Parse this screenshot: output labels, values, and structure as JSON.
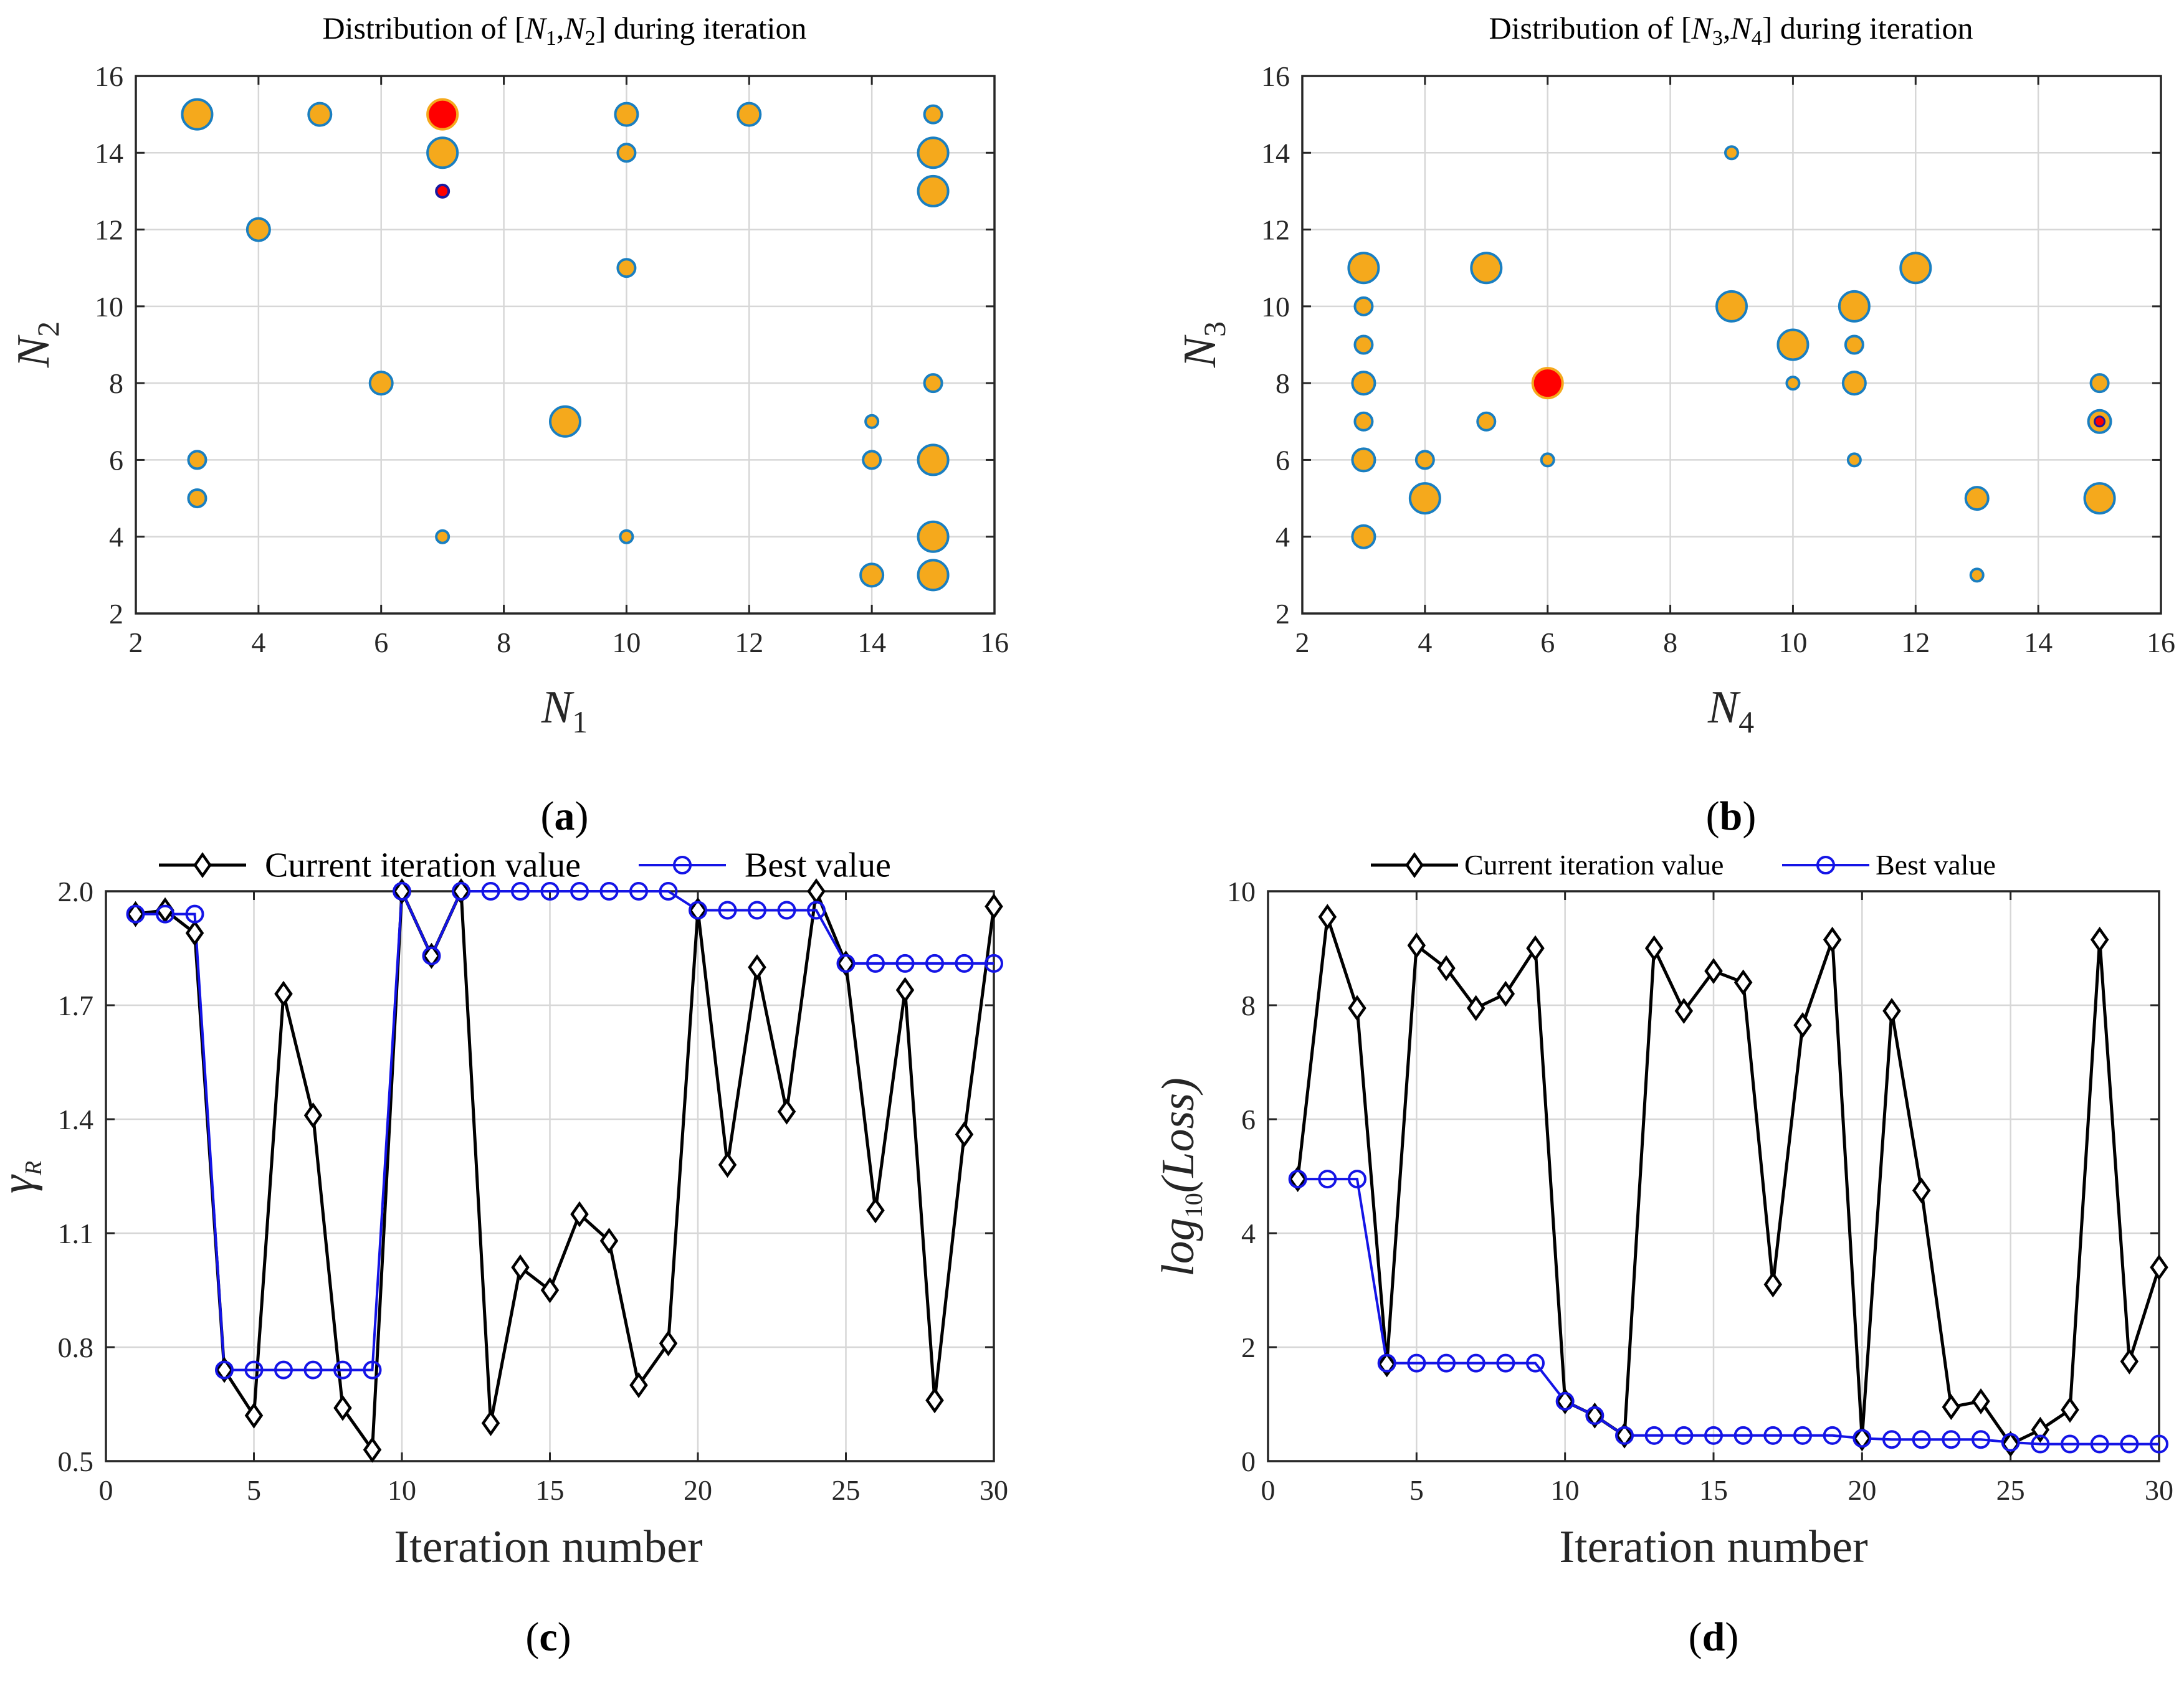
{
  "chart_data": [
    {
      "id": "a",
      "type": "scatter",
      "title": "Distribution of [N1,N2] during iteration",
      "title_parts": [
        "Distribution of [",
        "N",
        "1",
        ",",
        "N",
        "2",
        "] during iteration"
      ],
      "xlabel": "N1",
      "xlabel_parts": [
        "N",
        "1"
      ],
      "ylabel": "N2",
      "ylabel_parts": [
        "N",
        "2"
      ],
      "xlim": [
        2,
        16
      ],
      "ylim": [
        2,
        16
      ],
      "xticks": [
        "2",
        "4",
        "6",
        "8",
        "10",
        "12",
        "14",
        "16"
      ],
      "yticks": [
        "2",
        "4",
        "6",
        "8",
        "10",
        "12",
        "14",
        "16"
      ],
      "grid": true,
      "caption": "(a)",
      "caption_letter": "a",
      "points": [
        {
          "x": 3,
          "y": 15,
          "size": "large"
        },
        {
          "x": 3,
          "y": 6,
          "size": "small"
        },
        {
          "x": 3,
          "y": 5,
          "size": "small"
        },
        {
          "x": 4,
          "y": 12,
          "size": "medium"
        },
        {
          "x": 5,
          "y": 15,
          "size": "medium"
        },
        {
          "x": 6,
          "y": 8,
          "size": "medium"
        },
        {
          "x": 7,
          "y": 15,
          "size": "large",
          "highlight": "best"
        },
        {
          "x": 7,
          "y": 14,
          "size": "large"
        },
        {
          "x": 7,
          "y": 13,
          "size": "tiny",
          "highlight": "current"
        },
        {
          "x": 7,
          "y": 4,
          "size": "tiny"
        },
        {
          "x": 9,
          "y": 7,
          "size": "large"
        },
        {
          "x": 10,
          "y": 15,
          "size": "medium"
        },
        {
          "x": 10,
          "y": 14,
          "size": "small"
        },
        {
          "x": 10,
          "y": 11,
          "size": "small"
        },
        {
          "x": 10,
          "y": 4,
          "size": "tiny"
        },
        {
          "x": 12,
          "y": 15,
          "size": "medium"
        },
        {
          "x": 14,
          "y": 7,
          "size": "tiny"
        },
        {
          "x": 14,
          "y": 6,
          "size": "small"
        },
        {
          "x": 14,
          "y": 3,
          "size": "medium"
        },
        {
          "x": 15,
          "y": 15,
          "size": "small"
        },
        {
          "x": 15,
          "y": 14,
          "size": "large"
        },
        {
          "x": 15,
          "y": 13,
          "size": "large"
        },
        {
          "x": 15,
          "y": 8,
          "size": "small"
        },
        {
          "x": 15,
          "y": 6,
          "size": "large"
        },
        {
          "x": 15,
          "y": 4,
          "size": "large"
        },
        {
          "x": 15,
          "y": 3,
          "size": "large"
        }
      ]
    },
    {
      "id": "b",
      "type": "scatter",
      "title": "Distribution of [N3,N4] during iteration",
      "title_parts": [
        "Distribution of [",
        "N",
        "3",
        ",",
        "N",
        "4",
        "] during iteration"
      ],
      "xlabel": "N4",
      "xlabel_parts": [
        "N",
        "4"
      ],
      "ylabel": "N3",
      "ylabel_parts": [
        "N",
        "3"
      ],
      "xlim": [
        2,
        16
      ],
      "ylim": [
        2,
        16
      ],
      "xticks": [
        "2",
        "4",
        "6",
        "8",
        "10",
        "12",
        "14",
        "16"
      ],
      "yticks": [
        "2",
        "4",
        "6",
        "8",
        "10",
        "12",
        "14",
        "16"
      ],
      "grid": true,
      "caption": "(b)",
      "caption_letter": "b",
      "points": [
        {
          "x": 3,
          "y": 11,
          "size": "large"
        },
        {
          "x": 3,
          "y": 10,
          "size": "small"
        },
        {
          "x": 3,
          "y": 9,
          "size": "small"
        },
        {
          "x": 3,
          "y": 8,
          "size": "medium"
        },
        {
          "x": 3,
          "y": 7,
          "size": "small"
        },
        {
          "x": 3,
          "y": 6,
          "size": "medium"
        },
        {
          "x": 3,
          "y": 4,
          "size": "medium"
        },
        {
          "x": 4,
          "y": 6,
          "size": "small"
        },
        {
          "x": 4,
          "y": 5,
          "size": "large"
        },
        {
          "x": 5,
          "y": 11,
          "size": "large"
        },
        {
          "x": 5,
          "y": 7,
          "size": "small"
        },
        {
          "x": 6,
          "y": 8,
          "size": "large",
          "highlight": "best"
        },
        {
          "x": 6,
          "y": 6,
          "size": "tiny"
        },
        {
          "x": 9,
          "y": 14,
          "size": "tiny"
        },
        {
          "x": 9,
          "y": 10,
          "size": "large"
        },
        {
          "x": 10,
          "y": 9,
          "size": "large"
        },
        {
          "x": 10,
          "y": 8,
          "size": "tiny"
        },
        {
          "x": 11,
          "y": 10,
          "size": "large"
        },
        {
          "x": 11,
          "y": 9,
          "size": "small"
        },
        {
          "x": 11,
          "y": 8,
          "size": "medium"
        },
        {
          "x": 11,
          "y": 6,
          "size": "tiny"
        },
        {
          "x": 12,
          "y": 11,
          "size": "large"
        },
        {
          "x": 13,
          "y": 5,
          "size": "medium"
        },
        {
          "x": 13,
          "y": 3,
          "size": "tiny"
        },
        {
          "x": 15,
          "y": 8,
          "size": "small"
        },
        {
          "x": 15,
          "y": 7,
          "size": "medium",
          "highlight": "current"
        },
        {
          "x": 15,
          "y": 5,
          "size": "large"
        }
      ]
    },
    {
      "id": "c",
      "type": "line",
      "xlabel": "Iteration number",
      "ylabel": "γR",
      "ylabel_parts": [
        "γ",
        "R"
      ],
      "xlim": [
        0,
        30
      ],
      "ylim": [
        0.5,
        2.0
      ],
      "xticks": [
        "0",
        "5",
        "10",
        "15",
        "20",
        "25",
        "30"
      ],
      "xtick_values": [
        0,
        5,
        10,
        15,
        20,
        25,
        30
      ],
      "yticks": [
        "0.5",
        "0.8",
        "1.1",
        "1.4",
        "1.7",
        "2.0"
      ],
      "ytick_values": [
        0.5,
        0.8,
        1.1,
        1.4,
        1.7,
        2.0
      ],
      "grid": true,
      "legend": "top, horizontal",
      "caption": "(c)",
      "caption_letter": "c",
      "x": [
        1,
        2,
        3,
        4,
        5,
        6,
        7,
        8,
        9,
        10,
        11,
        12,
        13,
        14,
        15,
        16,
        17,
        18,
        19,
        20,
        21,
        22,
        23,
        24,
        25,
        26,
        27,
        28,
        29,
        30
      ],
      "series": [
        {
          "name": "Current iteration value",
          "color": "#000000",
          "marker": "diamond",
          "values": [
            1.94,
            1.95,
            1.89,
            0.74,
            0.62,
            1.73,
            1.41,
            0.64,
            0.53,
            2.0,
            1.83,
            2.0,
            0.6,
            1.01,
            0.95,
            1.15,
            1.08,
            0.7,
            0.81,
            1.95,
            1.28,
            1.8,
            1.42,
            2.0,
            1.81,
            1.16,
            1.74,
            0.66,
            1.36,
            1.96
          ]
        },
        {
          "name": "Best value",
          "color": "#1414e6",
          "marker": "circle",
          "values": [
            1.94,
            1.94,
            1.94,
            0.74,
            0.74,
            0.74,
            0.74,
            0.74,
            0.74,
            2.0,
            1.83,
            2.0,
            2.0,
            2.0,
            2.0,
            2.0,
            2.0,
            2.0,
            2.0,
            1.95,
            1.95,
            1.95,
            1.95,
            1.95,
            1.81,
            1.81,
            1.81,
            1.81,
            1.81,
            1.81
          ]
        }
      ]
    },
    {
      "id": "d",
      "type": "line",
      "xlabel": "Iteration number",
      "ylabel": "log10(Loss)",
      "ylabel_parts": [
        "log",
        "10",
        "(Loss)"
      ],
      "xlim": [
        0,
        30
      ],
      "ylim": [
        0,
        10
      ],
      "xticks": [
        "0",
        "5",
        "10",
        "15",
        "20",
        "25",
        "30"
      ],
      "xtick_values": [
        0,
        5,
        10,
        15,
        20,
        25,
        30
      ],
      "yticks": [
        "0",
        "2",
        "4",
        "6",
        "8",
        "10"
      ],
      "ytick_values": [
        0,
        2,
        4,
        6,
        8,
        10
      ],
      "grid": true,
      "legend": "top, horizontal",
      "caption": "(d)",
      "caption_letter": "d",
      "x": [
        1,
        2,
        3,
        4,
        5,
        6,
        7,
        8,
        9,
        10,
        11,
        12,
        13,
        14,
        15,
        16,
        17,
        18,
        19,
        20,
        21,
        22,
        23,
        24,
        25,
        26,
        27,
        28,
        29,
        30
      ],
      "series": [
        {
          "name": "Current iteration value",
          "color": "#000000",
          "marker": "diamond",
          "values": [
            4.95,
            9.55,
            7.95,
            1.7,
            9.05,
            8.65,
            7.95,
            8.2,
            9.0,
            1.05,
            0.8,
            0.45,
            9.0,
            7.9,
            8.6,
            8.4,
            3.1,
            7.65,
            9.15,
            0.4,
            7.9,
            4.75,
            0.95,
            1.05,
            0.3,
            0.55,
            0.9,
            9.15,
            1.75,
            3.4
          ]
        },
        {
          "name": "Best value",
          "color": "#1414e6",
          "marker": "circle",
          "values": [
            4.95,
            4.95,
            4.95,
            1.72,
            1.72,
            1.72,
            1.72,
            1.72,
            1.72,
            1.05,
            0.8,
            0.45,
            0.45,
            0.45,
            0.45,
            0.45,
            0.45,
            0.45,
            0.45,
            0.4,
            0.38,
            0.38,
            0.38,
            0.38,
            0.33,
            0.3,
            0.3,
            0.3,
            0.3,
            0.3
          ]
        }
      ]
    }
  ],
  "colors": {
    "dot_fill": "#f5a91c",
    "dot_edge": "#1a7fc1",
    "best_fill": "#ff0000",
    "best_edge": "#f5a91c",
    "current_fill": "#ff0000",
    "current_edge": "#1a1aa0",
    "axis": "#262626",
    "grid": "#d7d7d7"
  }
}
